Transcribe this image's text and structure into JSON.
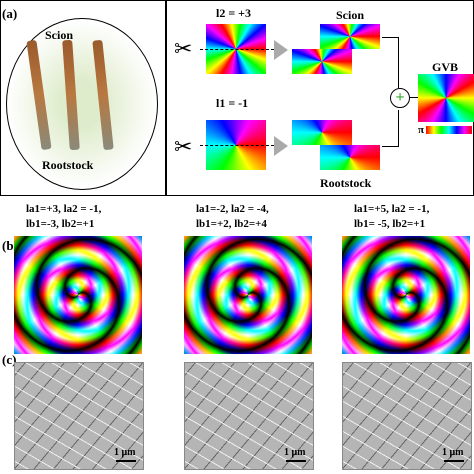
{
  "panel_a": {
    "label": "(a)",
    "circle_top": "Scion",
    "circle_bottom": "Rootstock",
    "top_charge": "l2 = +3",
    "top_output": "Scion",
    "bottom_charge": "l1 = -1",
    "bottom_output": "Rootstock",
    "result": "GVB",
    "colorbar_min": "π"
  },
  "panel_b": {
    "label": "(b)",
    "cases": [
      {
        "line1": "la1=+3, la2 = -1,",
        "line2": "lb1=-3, lb2=+1"
      },
      {
        "line1": "la1=-2, la2 = -4,",
        "line2": "lb1=+2, lb2=+4"
      },
      {
        "line1": "la1=+5, la2 = -1,",
        "line2": "lb1= -5, lb2=+1"
      }
    ]
  },
  "panel_c": {
    "label": "(c)",
    "scale_bars": [
      "1 μm",
      "1 μm",
      "1 μm"
    ]
  }
}
